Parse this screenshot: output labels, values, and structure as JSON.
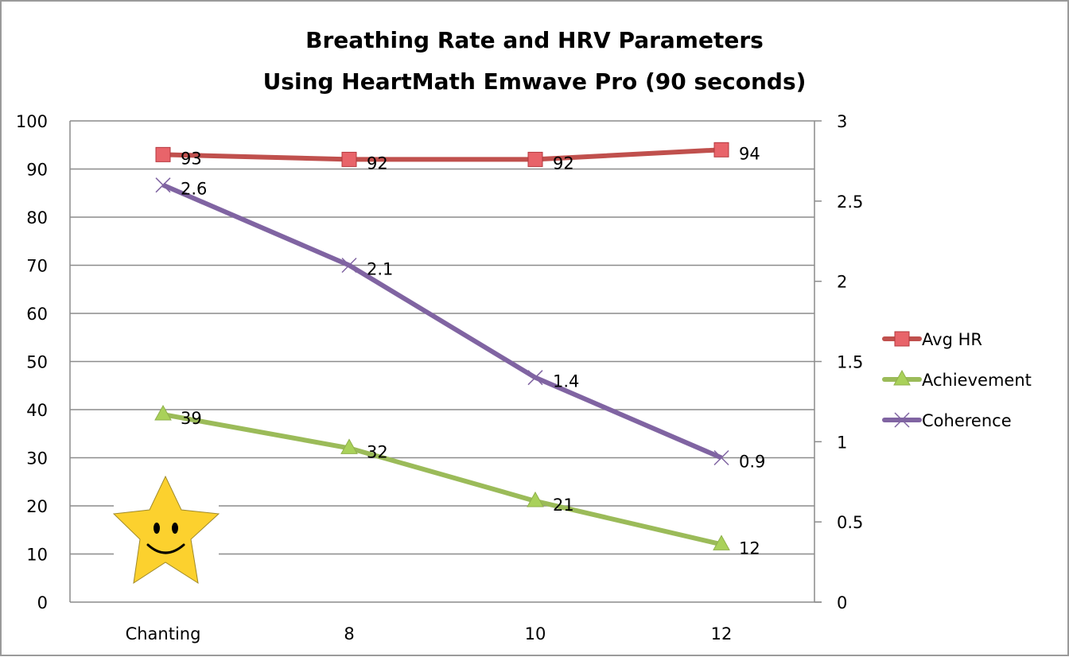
{
  "chart_data": {
    "type": "line",
    "title": [
      "Breathing Rate and HRV Parameters",
      "Using HeartMath Emwave Pro (90 seconds)"
    ],
    "xlabel": "",
    "ylabel": "",
    "y2label": "",
    "categories": [
      "Chanting",
      "8",
      "10",
      "12"
    ],
    "ylim": [
      0,
      100
    ],
    "yticks": [
      "0",
      "10",
      "20",
      "30",
      "40",
      "50",
      "60",
      "70",
      "80",
      "90",
      "100"
    ],
    "y2lim": [
      0,
      3
    ],
    "y2ticks": [
      "0",
      "0.5",
      "1",
      "1.5",
      "2",
      "2.5",
      "3"
    ],
    "grid": true,
    "legend_position": "right",
    "series": [
      {
        "name": "Avg HR",
        "axis": "left",
        "marker": "square",
        "color": "#C0504D",
        "marker_color": "#E8646A",
        "values": [
          93,
          92,
          92,
          94
        ],
        "labels": [
          "93",
          "92",
          "92",
          "94"
        ]
      },
      {
        "name": "Achievement",
        "axis": "left",
        "marker": "triangle",
        "color": "#9BBB59",
        "marker_color": "#A9D15A",
        "values": [
          39,
          32,
          21,
          12
        ],
        "labels": [
          "39",
          "32",
          "21",
          "12"
        ]
      },
      {
        "name": "Coherence",
        "axis": "right",
        "marker": "x",
        "color": "#8064A2",
        "marker_color": "#8064A2",
        "values": [
          2.6,
          2.1,
          1.4,
          0.9
        ],
        "labels": [
          "2.6",
          "2.1",
          "1.4",
          "0.9"
        ]
      }
    ],
    "annotations": [
      {
        "type": "smiley-star",
        "position": "bottom-left"
      }
    ]
  }
}
